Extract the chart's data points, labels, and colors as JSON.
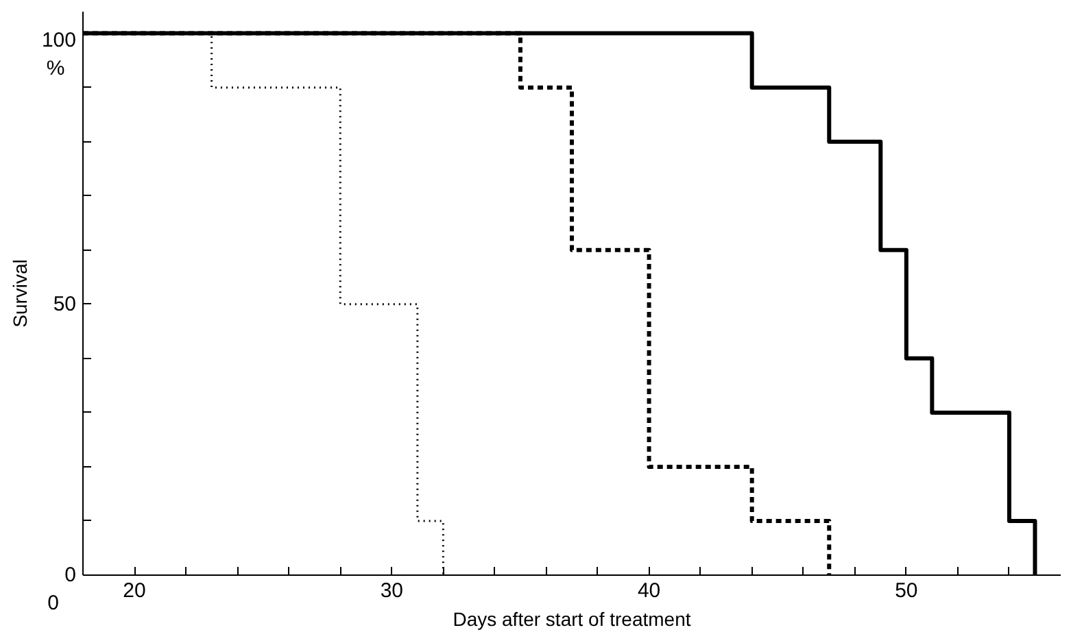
{
  "chart_data": {
    "type": "step",
    "xlabel": "Days after start of treatment",
    "ylabel": "Survival",
    "annotations": [
      "0",
      "%"
    ],
    "xlim": [
      18,
      56
    ],
    "ylim": [
      0,
      104
    ],
    "xticks": [
      20,
      {
        "value": 22,
        "label": null
      },
      {
        "value": 24,
        "label": null
      },
      {
        "value": 26,
        "label": null
      },
      {
        "value": 28,
        "label": null
      },
      30,
      {
        "value": 32,
        "label": null
      },
      {
        "value": 34,
        "label": null
      },
      {
        "value": 36,
        "label": null
      },
      {
        "value": 38,
        "label": null
      },
      40,
      {
        "value": 42,
        "label": null
      },
      {
        "value": 44,
        "label": null
      },
      {
        "value": 46,
        "label": null
      },
      {
        "value": 48,
        "label": null
      },
      50,
      {
        "value": 52,
        "label": null
      },
      {
        "value": 54,
        "label": null
      }
    ],
    "yticks": [
      0,
      {
        "value": 10,
        "label": null
      },
      {
        "value": 20,
        "label": null
      },
      {
        "value": 30,
        "label": null
      },
      {
        "value": 40,
        "label": null
      },
      50,
      {
        "value": 60,
        "label": null
      },
      {
        "value": 70,
        "label": null
      },
      {
        "value": 80,
        "label": null
      },
      {
        "value": 90,
        "label": null
      },
      100
    ],
    "grid": false,
    "series": [
      {
        "color": "#000000",
        "line_style": "dotted",
        "x": [
          18,
          23,
          28,
          31,
          32
        ],
        "values": [
          100,
          90,
          50,
          10,
          0
        ]
      },
      {
        "color": "#000000",
        "line_style": "dashed",
        "x": [
          18,
          35,
          37,
          40,
          44,
          47
        ],
        "values": [
          100,
          90,
          60,
          20,
          10,
          0
        ]
      },
      {
        "color": "#000000",
        "line_style": "solid",
        "x": [
          18,
          44,
          47,
          49,
          50,
          51,
          54,
          55
        ],
        "values": [
          100,
          90,
          80,
          60,
          40,
          30,
          10,
          0
        ]
      }
    ]
  }
}
